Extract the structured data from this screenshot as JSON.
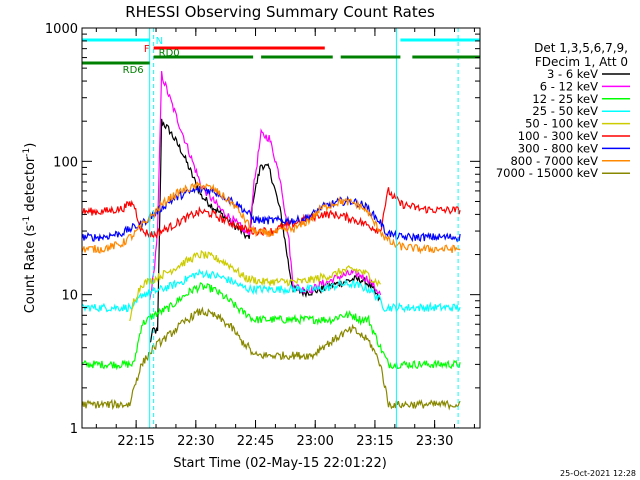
{
  "chart_data": {
    "type": "line",
    "title": "RHESSI Observing Summary Count Rates",
    "xlabel": "Start Time (02-May-15 22:01:22)",
    "ylabel_main": "Count Rate (s",
    "ylabel_sup1": "-1",
    "ylabel_mid": " detector",
    "ylabel_sup2": "-1",
    "ylabel_end": ")",
    "y_scale": "log",
    "ylim": [
      1,
      1000
    ],
    "xlim_minutes": [
      0,
      100
    ],
    "x_ticks": [
      {
        "label": "22:15",
        "min": 13.6
      },
      {
        "label": "22:30",
        "min": 28.6
      },
      {
        "label": "22:45",
        "min": 43.6
      },
      {
        "label": "23:00",
        "min": 58.6
      },
      {
        "label": "23:15",
        "min": 73.6
      },
      {
        "label": "23:30",
        "min": 88.6
      }
    ],
    "y_ticks": [
      {
        "label": "1",
        "v": 1
      },
      {
        "label": "10",
        "v": 10
      },
      {
        "label": "100",
        "v": 100
      },
      {
        "label": "1000",
        "v": 1000
      }
    ],
    "legend_header": [
      "Det 1,3,5,6,7,9,",
      "FDecim 1, Att 0"
    ],
    "legend_placement": "right",
    "timestamp": "25-Oct-2021 12:28",
    "series": [
      {
        "name": "3 - 6 keV",
        "color": "#000000",
        "x": [
          17,
          18,
          19,
          20,
          22,
          25,
          30,
          35,
          40,
          42,
          43,
          45,
          47,
          48,
          50,
          52,
          53,
          55,
          58,
          60,
          62,
          64,
          66,
          68,
          70,
          72,
          73,
          75
        ],
        "y": [
          4.3,
          5.5,
          5.2,
          200,
          170,
          120,
          55,
          40,
          30,
          26,
          52,
          95,
          88,
          70,
          40,
          16,
          11,
          10.5,
          10.5,
          11,
          11.5,
          12,
          12.5,
          13,
          13,
          12,
          11,
          9
        ]
      },
      {
        "name": "6 - 12 keV",
        "color": "#ff00ff",
        "x": [
          17,
          18,
          19,
          20,
          22,
          25,
          30,
          35,
          40,
          42,
          43,
          45,
          47,
          48,
          50,
          52,
          53,
          55,
          58,
          60,
          62,
          64,
          66,
          68,
          70,
          72,
          73,
          75
        ],
        "y": [
          9,
          14,
          30,
          450,
          300,
          170,
          65,
          43,
          32,
          28,
          60,
          160,
          150,
          120,
          70,
          25,
          12,
          11,
          11,
          12,
          12.5,
          13.5,
          14,
          14.5,
          14,
          13,
          12,
          10
        ]
      },
      {
        "name": "12 - 25 keV",
        "color": "#00ff00",
        "x": [
          0,
          12,
          13,
          15,
          18,
          20,
          22,
          25,
          28,
          30,
          33,
          35,
          38,
          40,
          42,
          43,
          45,
          48,
          50,
          53,
          55,
          58,
          60,
          63,
          65,
          68,
          70,
          72,
          73,
          75,
          77,
          78,
          80,
          85,
          90,
          95
        ],
        "y": [
          3,
          3,
          3,
          6,
          7,
          7.5,
          8,
          9.5,
          11,
          11.5,
          11,
          10,
          8.5,
          7.5,
          7,
          6.5,
          6.5,
          6.5,
          6.5,
          6.5,
          6.5,
          6.5,
          6.5,
          6.5,
          7,
          7,
          6.5,
          6.5,
          5.5,
          4,
          3,
          3,
          3,
          3,
          3,
          3
        ]
      },
      {
        "name": "25 - 50 keV",
        "color": "#00ffff",
        "x": [
          0,
          12,
          13,
          15,
          18,
          20,
          22,
          25,
          28,
          30,
          33,
          35,
          38,
          40,
          42,
          43,
          45,
          48,
          50,
          53,
          55,
          58,
          60,
          63,
          65,
          68,
          70,
          72,
          73,
          75,
          76,
          77,
          78,
          80,
          85,
          90,
          95
        ],
        "y": [
          8,
          8,
          8,
          10,
          10.5,
          11,
          11.5,
          12.5,
          14,
          14.5,
          14,
          13.5,
          12.5,
          11.5,
          11,
          11,
          11,
          11,
          11,
          11,
          11,
          11,
          11,
          11.5,
          12,
          12,
          11.5,
          11,
          10.5,
          9,
          8,
          8,
          8,
          8,
          8,
          8,
          8
        ]
      },
      {
        "name": "50 - 100 keV",
        "color": "#cccc00",
        "x": [
          12,
          13,
          15,
          18,
          20,
          22,
          25,
          28,
          30,
          33,
          35,
          38,
          40,
          42,
          43,
          45,
          48,
          50,
          53,
          55,
          58,
          60,
          63,
          65,
          68,
          70,
          72,
          73,
          75
        ],
        "y": [
          6,
          9,
          12,
          13,
          14,
          15,
          17,
          19,
          20,
          19,
          18,
          16,
          14,
          13,
          13,
          12.5,
          12.5,
          12.5,
          12.5,
          12.5,
          13,
          13.5,
          14,
          15,
          15.5,
          15,
          14,
          13,
          12
        ]
      },
      {
        "name": "100 - 300 keV",
        "color": "#ff0000",
        "x": [
          0,
          5,
          10,
          12,
          13,
          15,
          18,
          20,
          22,
          25,
          28,
          30,
          33,
          35,
          38,
          40,
          42,
          43,
          45,
          48,
          50,
          53,
          55,
          58,
          60,
          63,
          65,
          68,
          70,
          72,
          73,
          75,
          76,
          77,
          78,
          80,
          85,
          90,
          95
        ],
        "y": [
          42,
          42,
          44,
          48,
          48,
          30,
          28,
          30,
          32,
          36,
          40,
          42,
          40,
          37,
          34,
          32,
          30,
          30,
          30,
          30,
          32,
          34,
          36,
          38,
          40,
          40,
          39,
          37,
          35,
          33,
          32,
          30,
          45,
          60,
          55,
          48,
          44,
          43,
          43
        ]
      },
      {
        "name": "300 - 800 keV",
        "color": "#0000ff",
        "x": [
          0,
          5,
          10,
          12,
          13,
          15,
          18,
          20,
          22,
          25,
          28,
          30,
          33,
          35,
          38,
          40,
          42,
          43,
          45,
          48,
          50,
          53,
          55,
          58,
          60,
          63,
          65,
          68,
          70,
          72,
          73,
          75,
          76,
          78,
          80,
          85,
          90,
          95
        ],
        "y": [
          27,
          27,
          29,
          31,
          32,
          34,
          40,
          45,
          50,
          56,
          60,
          62,
          60,
          56,
          50,
          45,
          40,
          37,
          36,
          36,
          36,
          36,
          36,
          40,
          45,
          48,
          50,
          50,
          48,
          44,
          40,
          35,
          30,
          28,
          27,
          27,
          27,
          27
        ]
      },
      {
        "name": "800 - 7000 keV",
        "color": "#ff8800",
        "x": [
          0,
          5,
          10,
          12,
          13,
          15,
          18,
          20,
          22,
          25,
          28,
          30,
          33,
          35,
          38,
          40,
          42,
          43,
          45,
          48,
          50,
          53,
          55,
          58,
          60,
          63,
          65,
          68,
          70,
          72,
          73,
          75,
          76,
          78,
          80,
          85,
          90,
          95
        ],
        "y": [
          22,
          22,
          24,
          27,
          28,
          33,
          40,
          47,
          53,
          60,
          64,
          66,
          62,
          56,
          48,
          40,
          33,
          30,
          29,
          29,
          30,
          31,
          33,
          38,
          44,
          48,
          50,
          49,
          46,
          41,
          36,
          30,
          27,
          24,
          23,
          22,
          22,
          22
        ]
      },
      {
        "name": "7000 - 15000 keV",
        "color": "#888800",
        "x": [
          0,
          12,
          13,
          15,
          18,
          20,
          22,
          25,
          28,
          30,
          33,
          35,
          38,
          40,
          42,
          43,
          45,
          48,
          50,
          53,
          55,
          58,
          60,
          63,
          65,
          68,
          70,
          72,
          73,
          75,
          77,
          78,
          80,
          85,
          90,
          95
        ],
        "y": [
          1.5,
          1.5,
          2,
          3,
          4,
          4.5,
          5,
          6,
          7,
          7.5,
          7,
          6.5,
          5.5,
          4.5,
          4,
          3.5,
          3.5,
          3.5,
          3.5,
          3.5,
          3.5,
          3.5,
          4,
          4.5,
          5,
          5.5,
          5,
          4.5,
          4,
          3,
          1.5,
          1.5,
          1.5,
          1.5,
          1.5,
          1.5
        ]
      }
    ],
    "state_bars": [
      {
        "label": "N",
        "color": "#00ffff",
        "segments": [
          [
            0,
            17
          ],
          [
            80,
            100
          ]
        ]
      },
      {
        "label": "F",
        "color": "#ff0000",
        "segments": [
          [
            18,
            61
          ]
        ]
      },
      {
        "label": "RD0",
        "color": "#008000",
        "segments": [
          [
            18,
            43
          ],
          [
            45,
            63
          ],
          [
            65,
            80
          ],
          [
            83,
            100
          ]
        ]
      },
      {
        "label": "RD6",
        "color": "#008000",
        "segments": [
          [
            0,
            17
          ]
        ]
      }
    ],
    "vertical_markers": [
      {
        "min": 17,
        "style": "solid",
        "color": "#00ffff"
      },
      {
        "min": 18,
        "style": "dashed",
        "color": "#00ffff"
      },
      {
        "min": 79,
        "style": "solid",
        "color": "#00ffff"
      },
      {
        "min": 94.5,
        "style": "dashed",
        "color": "#00ffff"
      }
    ]
  }
}
